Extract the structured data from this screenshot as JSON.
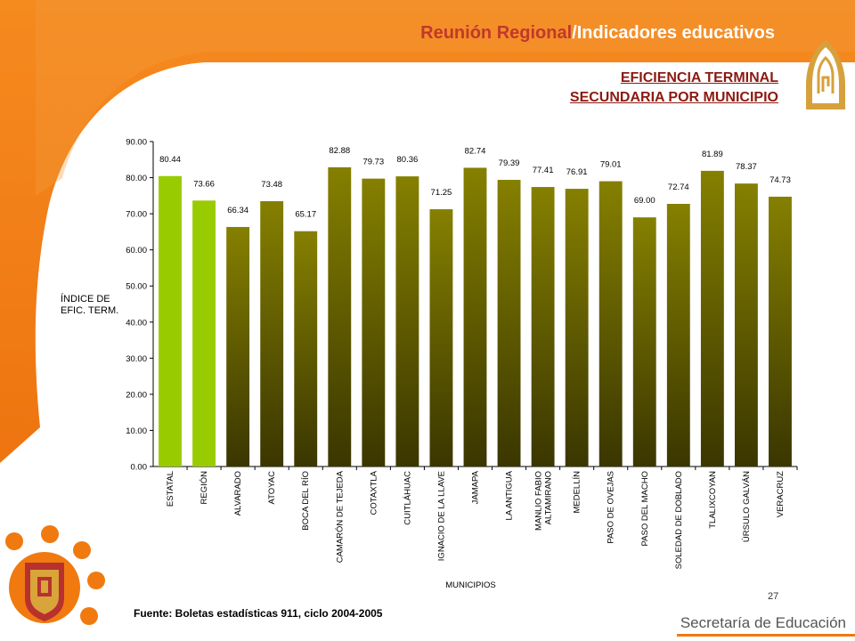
{
  "header": {
    "title_part1": "Reunión Regional",
    "title_part2": "/Indicadores educativos",
    "subtitle_line1": "EFICIENCIA TERMINAL",
    "subtitle_line2": "SECUNDARIA POR MUNICIPIO"
  },
  "colors": {
    "orange": "#f07a10",
    "title_red": "#c0392b",
    "subtitle_red": "#8b1a12",
    "bar_highlight": "#99cc00",
    "bar_olive_top": "#858000",
    "bar_olive_bottom": "#3a3600"
  },
  "chart_data": {
    "type": "bar",
    "categories": [
      "ESTATAL",
      "REGIÓN",
      "ALVARADO",
      "ATOYAC",
      "BOCA DEL RÍO",
      "CAMARÓN DE TEJEDA",
      "COTAXTLA",
      "CUITLÁHUAC",
      "IGNACIO DE LA LLAVE",
      "JAMAPA",
      "LA ANTIGUA",
      "MANLIO FABIO ALTAMIRANO",
      "MEDELLÍN",
      "PASO DE OVEJAS",
      "PASO DEL MACHO",
      "SOLEDAD DE DOBLADO",
      "TLALIXCOYAN",
      "ÚRSULO GALVÁN",
      "VERACRUZ"
    ],
    "values": [
      80.44,
      73.66,
      66.34,
      73.48,
      65.17,
      82.88,
      79.73,
      80.36,
      71.25,
      82.74,
      79.39,
      77.41,
      76.91,
      79.01,
      69.0,
      72.74,
      81.89,
      78.37,
      74.73
    ],
    "value_labels": [
      "80.44",
      "73.66",
      "66.34",
      "73.48",
      "65.17",
      "82.88",
      "79.73",
      "80.36",
      "71.25",
      "82.74",
      "79.39",
      "77.41",
      "76.91",
      "79.01",
      "69.00",
      "72.74",
      "81.89",
      "78.37",
      "74.73"
    ],
    "highlighted": [
      "ESTATAL",
      "REGIÓN"
    ],
    "ylim": [
      0,
      90
    ],
    "yticks": [
      "0.00",
      "10.00",
      "20.00",
      "30.00",
      "40.00",
      "50.00",
      "60.00",
      "70.00",
      "80.00",
      "90.00"
    ],
    "ylabel": "ÍNDICE DE EFIC. TERM.",
    "ylabel_line1": "ÍNDICE DE",
    "ylabel_line2": "EFIC. TERM.",
    "xlabel": "MUNICIPIOS",
    "grid": false
  },
  "footer": {
    "source": "Fuente: Boletas estadísticas  911, ciclo 2004-2005",
    "page_number": "27",
    "brand": "Secretaría de Educación"
  }
}
